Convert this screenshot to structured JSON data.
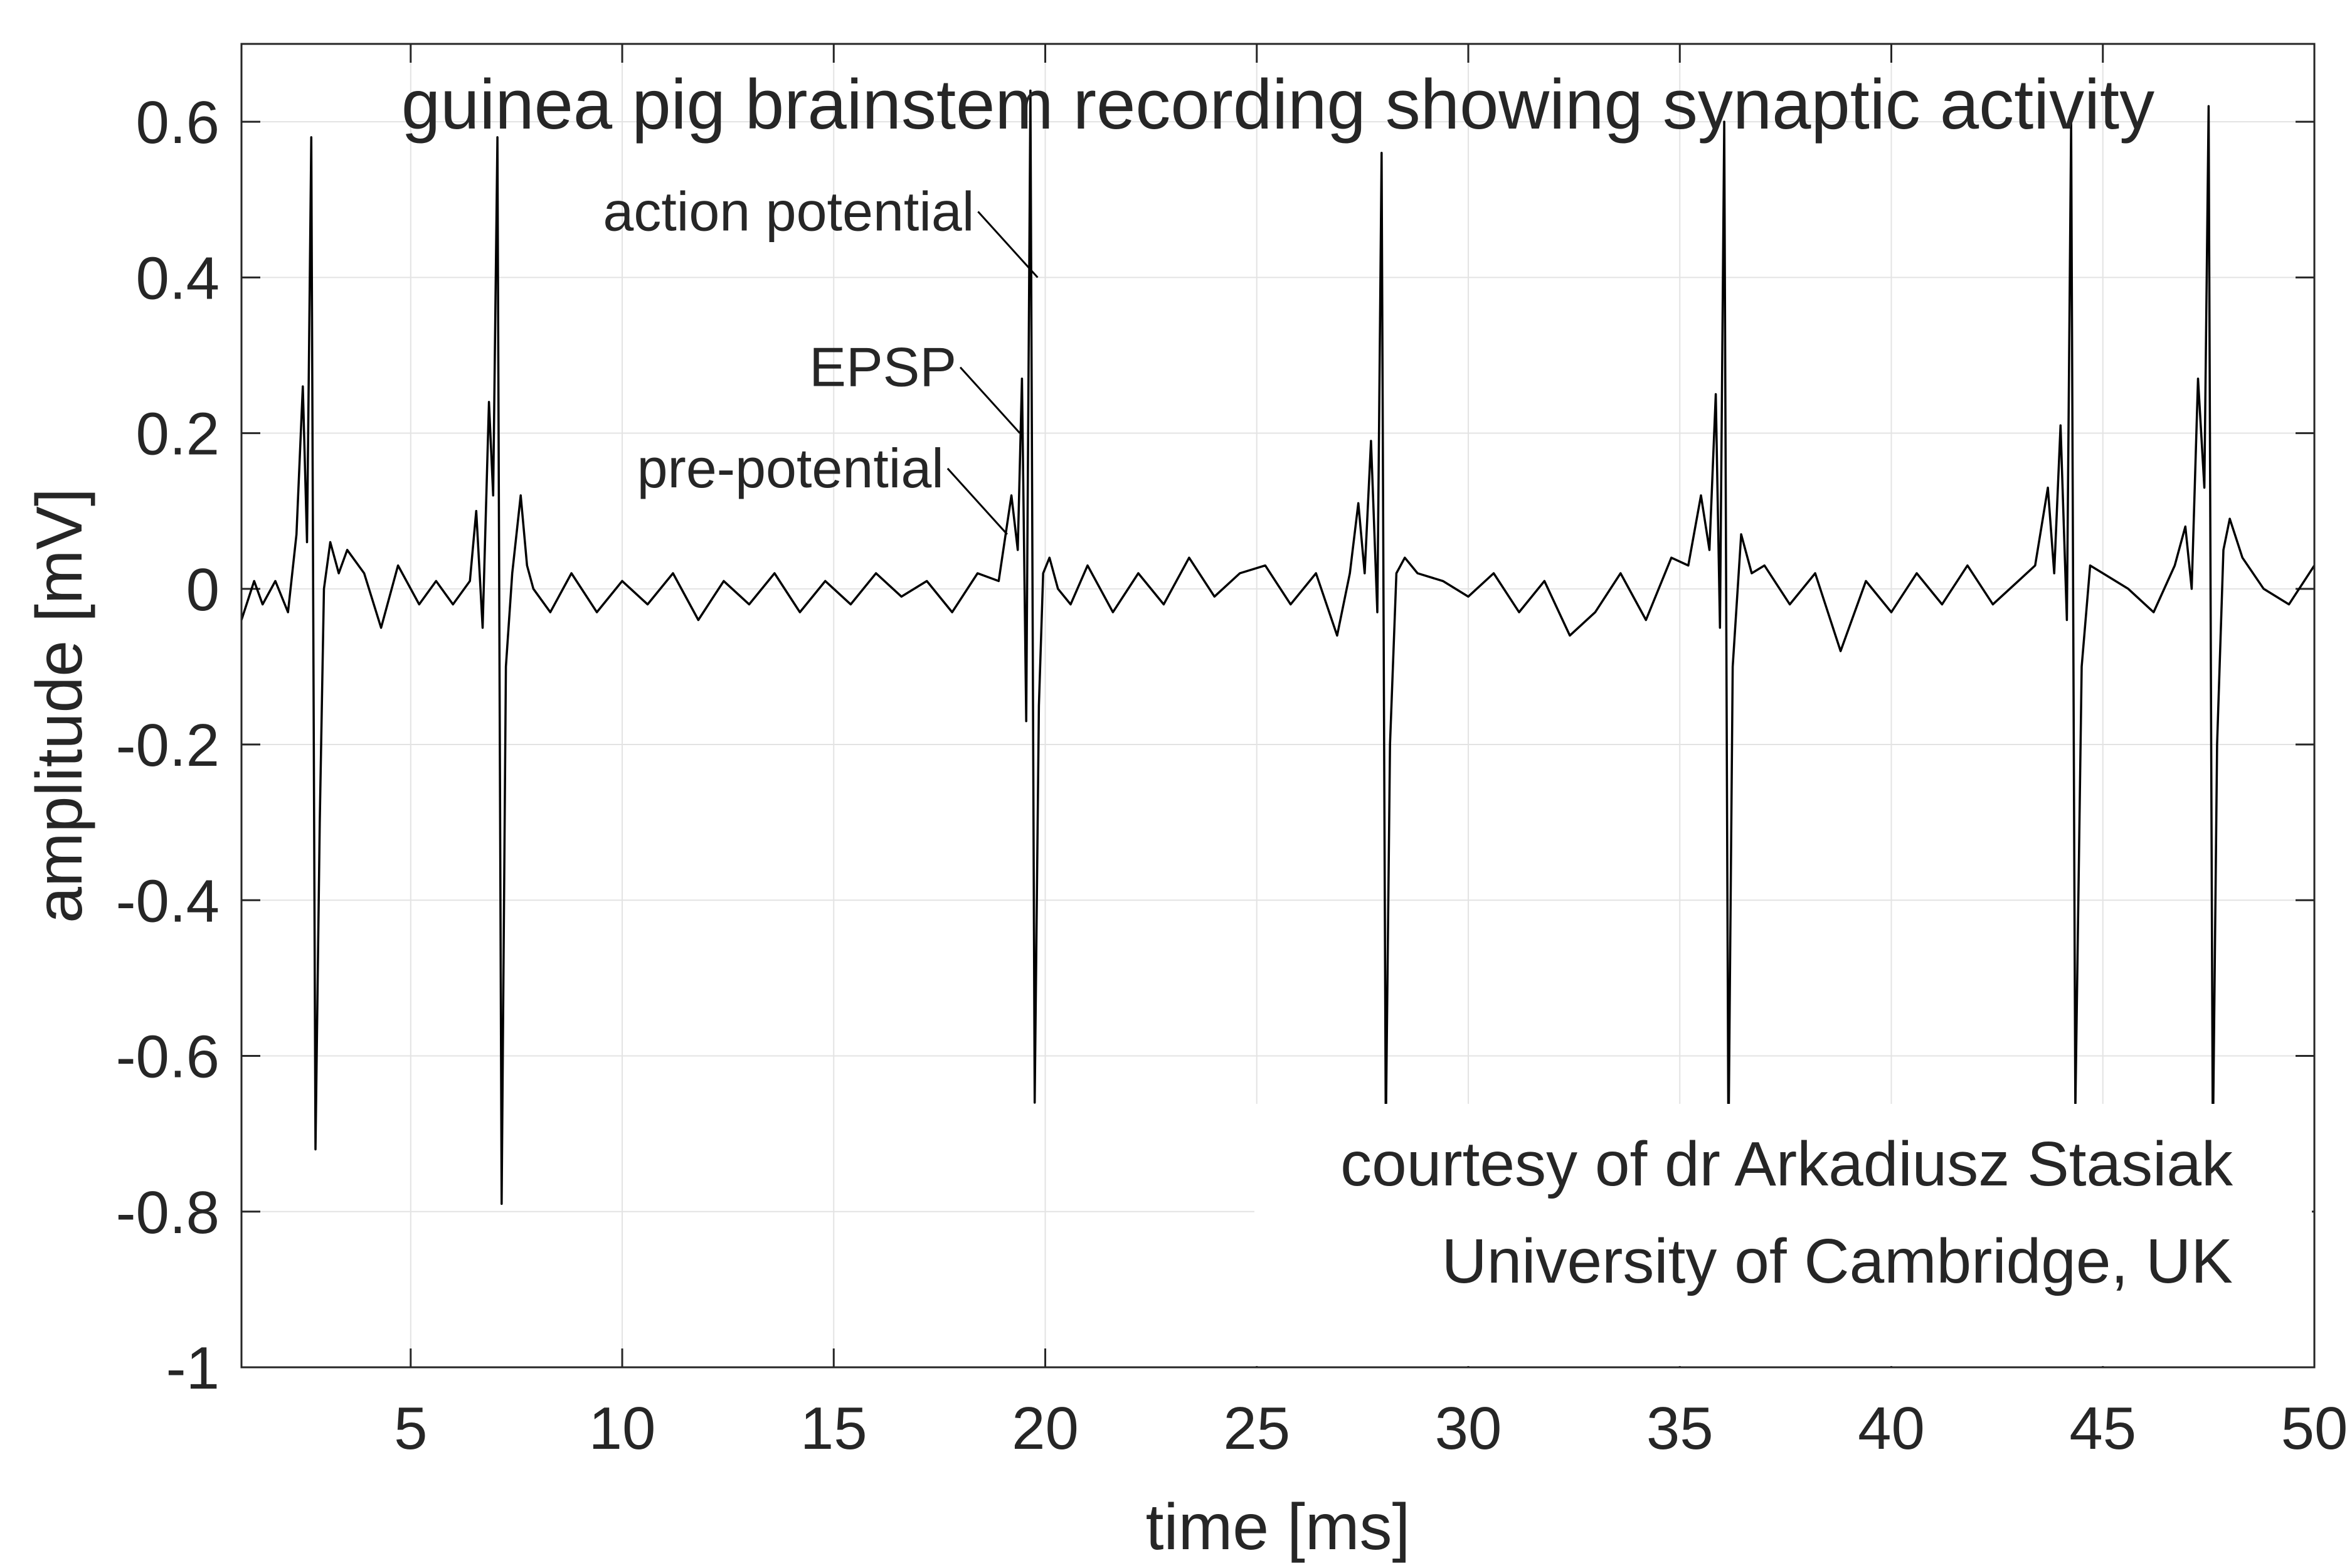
{
  "chart_data": {
    "type": "line",
    "title": "guinea pig brainstem recording showing synaptic activity",
    "xlabel": "time [ms]",
    "ylabel": "amplitude [mV]",
    "xlim": [
      1,
      50
    ],
    "ylim": [
      -1,
      0.7
    ],
    "xticks": [
      5,
      10,
      15,
      20,
      25,
      30,
      35,
      40,
      45,
      50
    ],
    "yticks": [
      0.6,
      0.4,
      0.2,
      0,
      -0.2,
      -0.4,
      -0.6,
      -0.8,
      -1
    ],
    "xtick_labels": [
      "5",
      "10",
      "15",
      "20",
      "25",
      "30",
      "35",
      "40",
      "45",
      "50"
    ],
    "ytick_labels": [
      "0.6",
      "0.4",
      "0.2",
      "0",
      "-0.2",
      "-0.4",
      "-0.6",
      "-0.8",
      "-1"
    ],
    "grid": true,
    "line_color": "#000000",
    "series": [
      {
        "x": [
          1.0,
          1.3,
          1.5,
          1.8,
          2.1,
          2.3,
          2.45,
          2.55,
          2.65,
          2.75,
          2.85,
          2.95,
          3.1,
          3.3,
          3.5,
          3.9,
          4.3,
          4.7,
          5.2,
          5.6,
          6.0,
          6.4,
          6.55,
          6.7,
          6.85,
          6.95,
          7.05,
          7.15,
          7.25,
          7.4,
          7.6,
          7.75,
          7.9,
          8.3,
          8.8,
          9.4,
          10.0,
          10.6,
          11.2,
          11.8,
          12.4,
          13.0,
          13.6,
          14.2,
          14.8,
          15.4,
          16.0,
          16.6,
          17.2,
          17.8,
          18.4,
          18.9,
          19.2,
          19.35,
          19.45,
          19.55,
          19.65,
          19.75,
          19.85,
          19.95,
          20.1,
          20.3,
          20.6,
          21.0,
          21.6,
          22.2,
          22.8,
          23.4,
          24.0,
          24.6,
          25.2,
          25.8,
          26.4,
          26.9,
          27.2,
          27.4,
          27.55,
          27.7,
          27.85,
          27.95,
          28.05,
          28.15,
          28.3,
          28.5,
          28.8,
          29.4,
          30.0,
          30.6,
          31.2,
          31.8,
          32.4,
          33.0,
          33.6,
          34.2,
          34.8,
          35.2,
          35.5,
          35.7,
          35.85,
          35.95,
          36.05,
          36.15,
          36.25,
          36.45,
          36.7,
          37.0,
          37.6,
          38.2,
          38.8,
          39.4,
          40.0,
          40.6,
          41.2,
          41.8,
          42.4,
          43.0,
          43.4,
          43.7,
          43.85,
          44.0,
          44.15,
          44.25,
          44.35,
          44.5,
          44.7,
          45.0,
          45.6,
          46.2,
          46.7,
          46.95,
          47.1,
          47.25,
          47.4,
          47.5,
          47.6,
          47.7,
          47.85,
          48.0,
          48.3,
          48.8,
          49.4,
          50.0
        ],
        "y": [
          -0.04,
          0.01,
          -0.02,
          0.01,
          -0.03,
          0.07,
          0.26,
          0.06,
          0.58,
          -0.72,
          -0.3,
          0.0,
          0.06,
          0.02,
          0.05,
          0.02,
          -0.05,
          0.03,
          -0.02,
          0.01,
          -0.02,
          0.01,
          0.1,
          -0.05,
          0.24,
          0.12,
          0.58,
          -0.79,
          -0.1,
          0.02,
          0.12,
          0.03,
          0.0,
          -0.03,
          0.02,
          -0.03,
          0.01,
          -0.02,
          0.02,
          -0.04,
          0.01,
          -0.02,
          0.02,
          -0.03,
          0.01,
          -0.02,
          0.02,
          -0.01,
          0.01,
          -0.03,
          0.02,
          0.01,
          0.12,
          0.05,
          0.27,
          -0.17,
          0.64,
          -0.66,
          -0.15,
          0.02,
          0.04,
          0.0,
          -0.02,
          0.03,
          -0.03,
          0.02,
          -0.02,
          0.04,
          -0.01,
          0.02,
          0.03,
          -0.02,
          0.02,
          -0.06,
          0.02,
          0.11,
          0.02,
          0.19,
          -0.03,
          0.56,
          -0.7,
          -0.2,
          0.02,
          0.04,
          0.02,
          0.01,
          -0.01,
          0.02,
          -0.03,
          0.01,
          -0.06,
          -0.03,
          0.02,
          -0.04,
          0.04,
          0.03,
          0.12,
          0.05,
          0.25,
          -0.05,
          0.6,
          -0.72,
          -0.1,
          0.07,
          0.02,
          0.03,
          -0.02,
          0.02,
          -0.08,
          0.01,
          -0.03,
          0.02,
          -0.02,
          0.03,
          -0.02,
          0.01,
          0.03,
          0.13,
          0.02,
          0.21,
          -0.04,
          0.6,
          -0.67,
          -0.1,
          0.03,
          0.02,
          0.0,
          -0.03,
          0.03,
          0.08,
          0.0,
          0.27,
          0.13,
          0.62,
          -0.72,
          -0.2,
          0.05,
          0.09,
          0.04,
          0.0,
          -0.02,
          0.03
        ]
      }
    ],
    "annotations": [
      {
        "text": "action potential",
        "x": 19.82,
        "y": 0.4
      },
      {
        "text": "EPSP",
        "x": 19.4,
        "y": 0.2
      },
      {
        "text": "pre-potential",
        "x": 19.1,
        "y": 0.07
      }
    ],
    "credit_lines": [
      "courtesy of dr Arkadiusz Stasiak",
      "University of Cambridge, UK"
    ]
  }
}
